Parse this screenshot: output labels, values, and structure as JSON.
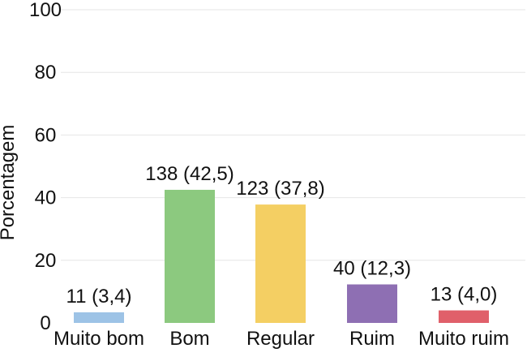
{
  "chart_data": {
    "type": "bar",
    "title": "",
    "xlabel": "",
    "ylabel": "Porcentagem",
    "ylim": [
      0,
      100
    ],
    "yticks": [
      0,
      20,
      40,
      60,
      80,
      100
    ],
    "grid": true,
    "legend": "none",
    "categories": [
      "Muito bom",
      "Bom",
      "Regular",
      "Ruim",
      "Muito ruim"
    ],
    "values": [
      3.4,
      42.5,
      37.8,
      12.3,
      4.0
    ],
    "data_labels": [
      "11 (3,4)",
      "138 (42,5)",
      "123 (37,8)",
      "40 (12,3)",
      "13 (4,0)"
    ],
    "colors": [
      "#9dc3e6",
      "#8cc97f",
      "#f4cf63",
      "#8e6fb3",
      "#e0606a"
    ]
  }
}
